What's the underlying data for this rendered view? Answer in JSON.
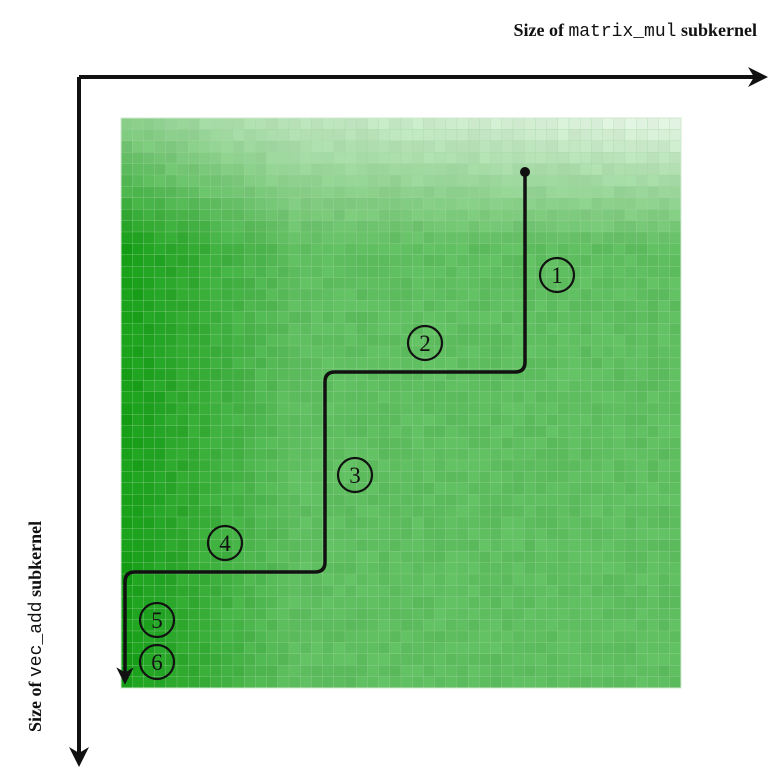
{
  "axes": {
    "x_title": {
      "prefix": "Size of ",
      "code": "matrix_mul",
      "suffix": " subkernel"
    },
    "y_title": {
      "prefix": "Size of ",
      "code": "vec_add",
      "suffix": " subkernel"
    }
  },
  "heatmap": {
    "colormap": "green (light at top rows, darker toward left columns)",
    "grid": true,
    "rows": 50,
    "cols": 50
  },
  "path": {
    "color": "#111111",
    "start_marker": "dot",
    "end_marker": "arrow",
    "steps": [
      "1",
      "2",
      "3",
      "4",
      "5",
      "6"
    ]
  },
  "colors": {
    "axis": "#111111",
    "grid_line": "#9fd39f",
    "green_dark": "#0a9a0a",
    "green_light": "#e4f4e4"
  }
}
